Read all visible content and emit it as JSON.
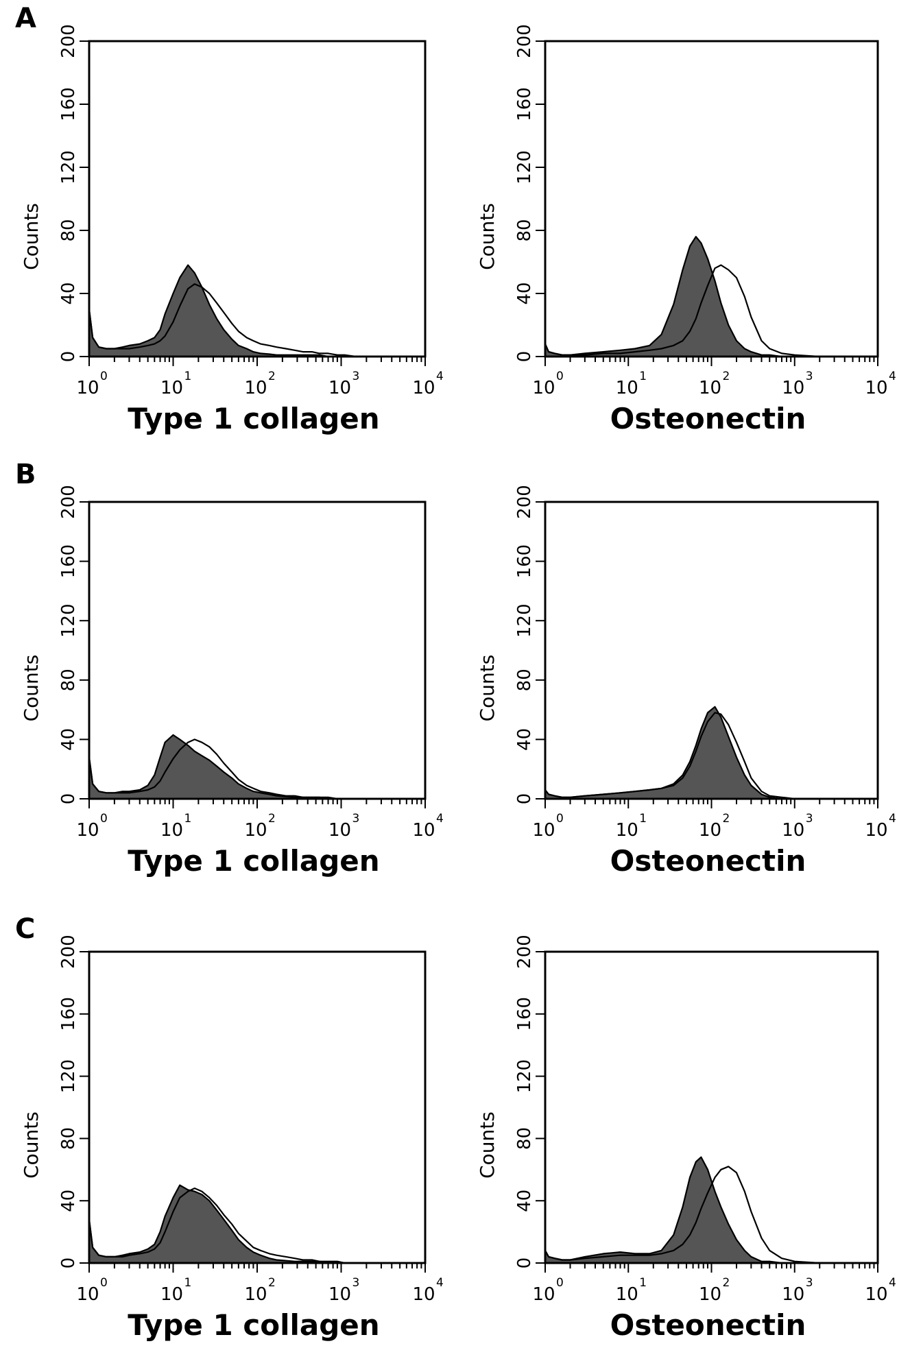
{
  "figure": {
    "panels": [
      {
        "label": "A"
      },
      {
        "label": "B"
      },
      {
        "label": "C"
      }
    ]
  },
  "style": {
    "filled_color": "#555555",
    "outline_color": "#000000",
    "background": "#ffffff"
  },
  "chart_data": [
    {
      "type": "area",
      "panel": "A",
      "xlabel": "Type 1 collagen",
      "ylabel": "Counts",
      "xscale": "log",
      "xlim": [
        1,
        10000
      ],
      "ylim": [
        0,
        200
      ],
      "yticks": [
        0,
        40,
        80,
        120,
        160,
        200
      ],
      "x": [
        1,
        1.1,
        1.3,
        1.6,
        2,
        2.5,
        3,
        4,
        5,
        6,
        7,
        8,
        10,
        12,
        15,
        18,
        22,
        27,
        33,
        40,
        50,
        60,
        75,
        90,
        110,
        140,
        170,
        220,
        280,
        350,
        450,
        550,
        700,
        900,
        1100,
        1500,
        2000,
        3000,
        5000,
        10000
      ],
      "series": [
        {
          "values": [
            30,
            12,
            6,
            5,
            5,
            6,
            7,
            8,
            10,
            12,
            17,
            27,
            40,
            50,
            58,
            53,
            44,
            33,
            24,
            17,
            11,
            7,
            5,
            3,
            2,
            1.5,
            1,
            1,
            1,
            1,
            1,
            1,
            0,
            0,
            0,
            0,
            0,
            0,
            0,
            0
          ]
        },
        {
          "values": [
            30,
            12,
            6,
            5,
            5,
            5,
            5,
            6,
            7,
            8,
            10,
            13,
            22,
            32,
            43,
            46,
            44,
            40,
            34,
            28,
            21,
            16,
            12,
            10,
            8,
            7,
            6,
            5,
            4,
            3,
            3,
            2,
            2,
            1,
            1,
            0,
            0,
            0,
            0,
            0
          ]
        }
      ]
    },
    {
      "type": "area",
      "panel": "A",
      "xlabel": "Osteonectin",
      "ylabel": "Counts",
      "xscale": "log",
      "xlim": [
        1,
        10000
      ],
      "ylim": [
        0,
        200
      ],
      "yticks": [
        0,
        40,
        80,
        120,
        160,
        200
      ],
      "x": [
        1,
        1.1,
        1.3,
        1.6,
        2,
        3,
        5,
        8,
        12,
        18,
        25,
        35,
        45,
        55,
        65,
        75,
        90,
        110,
        130,
        160,
        200,
        250,
        300,
        400,
        500,
        700,
        1000,
        2000,
        5000,
        10000
      ],
      "series": [
        {
          "values": [
            8,
            3,
            2,
            1,
            1,
            2,
            3,
            4,
            5,
            7,
            14,
            33,
            55,
            70,
            76,
            72,
            62,
            48,
            34,
            20,
            10,
            5,
            3,
            1,
            1,
            0,
            0,
            0,
            0,
            0
          ]
        },
        {
          "values": [
            8,
            3,
            2,
            1,
            1,
            1,
            2,
            2,
            3,
            4,
            5,
            7,
            10,
            16,
            24,
            34,
            45,
            56,
            58,
            55,
            50,
            38,
            25,
            10,
            5,
            2,
            1,
            0,
            0,
            0
          ]
        }
      ]
    },
    {
      "type": "area",
      "panel": "B",
      "xlabel": "Type 1 collagen",
      "ylabel": "Counts",
      "xscale": "log",
      "xlim": [
        1,
        10000
      ],
      "ylim": [
        0,
        200
      ],
      "yticks": [
        0,
        40,
        80,
        120,
        160,
        200
      ],
      "x": [
        1,
        1.1,
        1.3,
        1.6,
        2,
        2.5,
        3,
        4,
        5,
        6,
        7,
        8,
        10,
        12,
        15,
        18,
        22,
        27,
        33,
        40,
        50,
        60,
        75,
        90,
        110,
        140,
        170,
        220,
        280,
        350,
        450,
        550,
        700,
        900,
        1100,
        1500,
        2000,
        3000,
        5000,
        10000
      ],
      "series": [
        {
          "values": [
            28,
            10,
            5,
            4,
            4,
            5,
            5,
            6,
            9,
            16,
            28,
            38,
            43,
            40,
            36,
            32,
            29,
            26,
            22,
            18,
            14,
            10,
            7,
            5,
            4,
            3,
            2,
            1.5,
            1,
            1,
            1,
            1,
            0,
            0,
            0,
            0,
            0,
            0,
            0,
            0
          ]
        },
        {
          "values": [
            28,
            10,
            5,
            4,
            4,
            4,
            4,
            5,
            6,
            8,
            12,
            18,
            27,
            33,
            38,
            40,
            38,
            35,
            30,
            24,
            18,
            13,
            9,
            7,
            5,
            4,
            3,
            2,
            2,
            1,
            1,
            1,
            1,
            0,
            0,
            0,
            0,
            0,
            0,
            0
          ]
        }
      ]
    },
    {
      "type": "area",
      "panel": "B",
      "xlabel": "Osteonectin",
      "ylabel": "Counts",
      "xscale": "log",
      "xlim": [
        1,
        10000
      ],
      "ylim": [
        0,
        200
      ],
      "yticks": [
        0,
        40,
        80,
        120,
        160,
        200
      ],
      "x": [
        1,
        1.1,
        1.3,
        1.6,
        2,
        3,
        5,
        8,
        12,
        18,
        25,
        35,
        45,
        55,
        65,
        75,
        90,
        110,
        130,
        160,
        200,
        250,
        300,
        400,
        500,
        700,
        1000,
        2000,
        5000,
        10000
      ],
      "series": [
        {
          "values": [
            6,
            3,
            2,
            1,
            1,
            2,
            3,
            4,
            5,
            6,
            7,
            10,
            16,
            25,
            36,
            47,
            58,
            62,
            55,
            42,
            28,
            16,
            9,
            3,
            1,
            0,
            0,
            0,
            0,
            0
          ]
        },
        {
          "values": [
            6,
            3,
            2,
            1,
            1,
            2,
            3,
            4,
            5,
            6,
            7,
            9,
            14,
            22,
            32,
            42,
            52,
            58,
            57,
            50,
            38,
            25,
            14,
            5,
            2,
            1,
            0,
            0,
            0,
            0
          ]
        }
      ]
    },
    {
      "type": "area",
      "panel": "C",
      "xlabel": "Type 1 collagen",
      "ylabel": "Counts",
      "xscale": "log",
      "xlim": [
        1,
        10000
      ],
      "ylim": [
        0,
        200
      ],
      "yticks": [
        0,
        40,
        80,
        120,
        160,
        200
      ],
      "x": [
        1,
        1.1,
        1.3,
        1.6,
        2,
        2.5,
        3,
        4,
        5,
        6,
        7,
        8,
        10,
        12,
        15,
        18,
        22,
        27,
        33,
        40,
        50,
        60,
        75,
        90,
        110,
        140,
        170,
        220,
        280,
        350,
        450,
        550,
        700,
        900,
        1100,
        1500,
        2000,
        3000,
        5000,
        10000
      ],
      "series": [
        {
          "values": [
            28,
            10,
            5,
            4,
            4,
            5,
            6,
            7,
            9,
            12,
            20,
            30,
            42,
            50,
            47,
            46,
            44,
            40,
            34,
            28,
            21,
            15,
            10,
            7,
            5,
            3,
            2,
            1.5,
            1,
            1,
            1,
            1,
            0,
            0,
            0,
            0,
            0,
            0,
            0,
            0
          ]
        },
        {
          "values": [
            28,
            10,
            5,
            4,
            4,
            4,
            5,
            6,
            7,
            9,
            13,
            20,
            33,
            42,
            46,
            48,
            46,
            42,
            37,
            31,
            25,
            19,
            14,
            10,
            8,
            6,
            5,
            4,
            3,
            2,
            2,
            1,
            1,
            1,
            0,
            0,
            0,
            0,
            0,
            0
          ]
        }
      ]
    },
    {
      "type": "area",
      "panel": "C",
      "xlabel": "Osteonectin",
      "ylabel": "Counts",
      "xscale": "log",
      "xlim": [
        1,
        10000
      ],
      "ylim": [
        0,
        200
      ],
      "yticks": [
        0,
        40,
        80,
        120,
        160,
        200
      ],
      "x": [
        1,
        1.1,
        1.3,
        1.6,
        2,
        3,
        5,
        8,
        12,
        18,
        25,
        35,
        45,
        55,
        65,
        75,
        90,
        110,
        130,
        160,
        200,
        250,
        300,
        400,
        500,
        700,
        1000,
        2000,
        5000,
        10000
      ],
      "series": [
        {
          "values": [
            8,
            4,
            3,
            2,
            2,
            4,
            6,
            7,
            6,
            6,
            8,
            18,
            36,
            55,
            65,
            68,
            60,
            46,
            36,
            25,
            15,
            8,
            4,
            1,
            1,
            0,
            0,
            0,
            0,
            0
          ]
        },
        {
          "values": [
            8,
            4,
            3,
            2,
            2,
            3,
            4,
            5,
            5,
            5,
            6,
            8,
            12,
            18,
            26,
            35,
            45,
            55,
            60,
            62,
            58,
            46,
            33,
            16,
            8,
            3,
            1,
            0,
            0,
            0
          ]
        }
      ]
    }
  ]
}
